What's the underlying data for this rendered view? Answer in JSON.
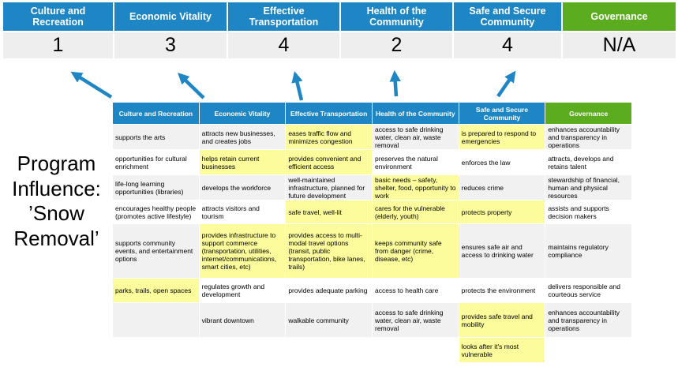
{
  "title": {
    "full": "Program Influence: ’Snow Removal’",
    "lines": [
      "Program",
      "Influence:",
      "’Snow",
      "Removal’"
    ]
  },
  "colors": {
    "header_blue": "#1E86C4",
    "governance_green": "#5BAD1F",
    "highlight_yellow": "#FCFC9C",
    "band_gray": "#F1F1F1",
    "score_row_gray": "#EEEEEE",
    "arrow_blue": "#1E86C4"
  },
  "scoreboard": {
    "columns": [
      {
        "label": "Culture and Recreation",
        "score": "1"
      },
      {
        "label": "Economic Vitality",
        "score": "3"
      },
      {
        "label": "Effective Transportation",
        "score": "4"
      },
      {
        "label": "Health of the Community",
        "score": "2"
      },
      {
        "label": "Safe and Secure Community",
        "score": "4"
      },
      {
        "label": "Governance",
        "score": "N/A"
      }
    ]
  },
  "arrows": [
    {
      "name": "up-arrow-culture",
      "points_to_score": "1"
    },
    {
      "name": "up-arrow-economic",
      "points_to_score": "3"
    },
    {
      "name": "up-arrow-transportation",
      "points_to_score": "4"
    },
    {
      "name": "up-arrow-health",
      "points_to_score": "2"
    },
    {
      "name": "up-arrow-safe",
      "points_to_score": "4"
    }
  ],
  "table": {
    "headers": [
      "Culture and Recreation",
      "Economic Vitality",
      "Effective Transportation",
      "Health of the Community",
      "Safe and Secure Community",
      "Governance"
    ],
    "rows": [
      [
        {
          "t": "supports the arts",
          "hl": false
        },
        {
          "t": "attracts new businesses, and creates jobs",
          "hl": false
        },
        {
          "t": "eases traffic flow and minimizes congestion",
          "hl": true
        },
        {
          "t": "access to safe drinking water, clean air, waste removal",
          "hl": false
        },
        {
          "t": "is prepared to respond to emergencies",
          "hl": true
        },
        {
          "t": "enhances accountability and transparency in operations",
          "hl": false
        }
      ],
      [
        {
          "t": "opportunities for cultural enrichment",
          "hl": false
        },
        {
          "t": "helps retain current businesses",
          "hl": true
        },
        {
          "t": "provides convenient and efficient access",
          "hl": true
        },
        {
          "t": "preserves the natural environment",
          "hl": false
        },
        {
          "t": "enforces the law",
          "hl": false
        },
        {
          "t": "attracts, develops and retains talent",
          "hl": false
        }
      ],
      [
        {
          "t": "life-long learning opportunities (libraries)",
          "hl": false
        },
        {
          "t": "develops the workforce",
          "hl": false
        },
        {
          "t": "well-maintained infrastructure, planned for future development",
          "hl": false
        },
        {
          "t": "basic needs – safety, shelter, food, opportunity to work",
          "hl": true
        },
        {
          "t": "reduces crime",
          "hl": false
        },
        {
          "t": "stewardship of financial, human and physical resources",
          "hl": false
        }
      ],
      [
        {
          "t": "encourages healthy people (promotes active lifestyle)",
          "hl": false
        },
        {
          "t": "attracts visitors and tourism",
          "hl": false
        },
        {
          "t": "safe travel, well-lit",
          "hl": true
        },
        {
          "t": "cares for the vulnerable (elderly, youth)",
          "hl": true
        },
        {
          "t": "protects property",
          "hl": true
        },
        {
          "t": "assists and supports decision makers",
          "hl": false
        }
      ],
      [
        {
          "t": "supports community events, and entertainment options",
          "hl": false
        },
        {
          "t": "provides infrastructure to support commerce (transportation, utilities, internet/communications, smart cities, etc)",
          "hl": true
        },
        {
          "t": "provides access to multi-modal travel options (transit, public transportation, bike lanes, trails)",
          "hl": true
        },
        {
          "t": "keeps community safe from danger (crime, disease, etc)",
          "hl": true
        },
        {
          "t": "ensures safe air and access to drinking water",
          "hl": false
        },
        {
          "t": "maintains regulatory compliance",
          "hl": false
        }
      ],
      [
        {
          "t": "parks, trails, open spaces",
          "hl": true
        },
        {
          "t": "regulates growth and development",
          "hl": false
        },
        {
          "t": "provides adequate parking",
          "hl": false
        },
        {
          "t": "access to health care",
          "hl": false
        },
        {
          "t": "protects the environment",
          "hl": false
        },
        {
          "t": "delivers responsible and courteous service",
          "hl": false
        }
      ],
      [
        {
          "t": "",
          "hl": false
        },
        {
          "t": "vibrant downtown",
          "hl": false
        },
        {
          "t": "walkable community",
          "hl": false
        },
        {
          "t": "access to safe drinking water, clean air, waste removal",
          "hl": false
        },
        {
          "t": "provides safe travel and mobility",
          "hl": true
        },
        {
          "t": "enhances accountability and transparency in operations",
          "hl": false
        }
      ],
      [
        {
          "t": "",
          "hl": false
        },
        {
          "t": "",
          "hl": false
        },
        {
          "t": "",
          "hl": false
        },
        {
          "t": "",
          "hl": false
        },
        {
          "t": "looks after it's most vulnerable",
          "hl": true
        },
        {
          "t": "",
          "hl": false
        }
      ]
    ]
  }
}
